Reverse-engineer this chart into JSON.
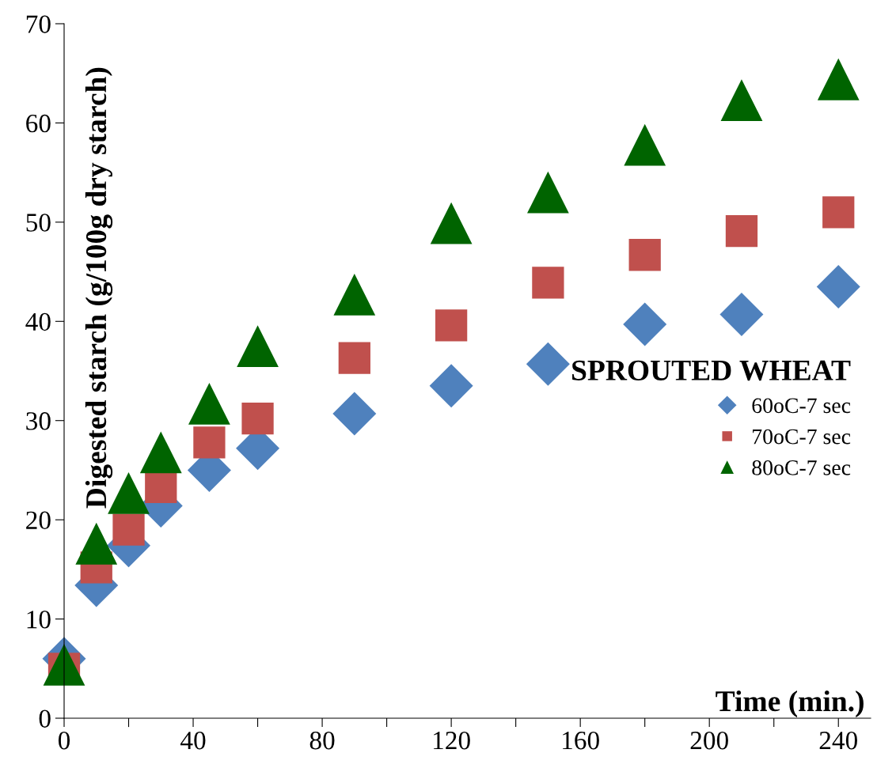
{
  "chart_data": {
    "type": "scatter",
    "xlabel": "Time (min.)",
    "ylabel": "Digested starch (g/100g dry starch)",
    "legend_title": "SPROUTED WHEAT",
    "legend": "center right",
    "x": [
      0,
      10,
      20,
      30,
      45,
      60,
      90,
      120,
      150,
      180,
      210,
      240
    ],
    "series": [
      {
        "name": "60oC-7 sec",
        "color": "#4f81bd",
        "marker": "diamond",
        "values": [
          6,
          13.4,
          17.4,
          21.4,
          25,
          27.2,
          30.7,
          33.5,
          35.7,
          39.7,
          40.7,
          43.5
        ]
      },
      {
        "name": "70oC-7 sec",
        "color": "#c0504d",
        "marker": "square",
        "values": [
          5,
          15.2,
          19,
          23.3,
          27.8,
          30.2,
          36.3,
          39.6,
          43.9,
          46.7,
          49.1,
          51
        ]
      },
      {
        "name": "80oC-7 sec",
        "color": "#006400",
        "marker": "triangle",
        "values": [
          5.4,
          17.6,
          22.7,
          26.8,
          31.7,
          37.5,
          42.7,
          49.9,
          53,
          57.8,
          62.3,
          64.4
        ]
      }
    ],
    "xlim": [
      0,
      250
    ],
    "ylim": [
      0,
      70
    ],
    "xticks": [
      0,
      {
        "value": 20,
        "label": null
      },
      40,
      {
        "value": 60,
        "label": null
      },
      80,
      {
        "value": 100,
        "label": null
      },
      120,
      {
        "value": 140,
        "label": null
      },
      160,
      {
        "value": 180,
        "label": null
      },
      200,
      {
        "value": 220,
        "label": null
      },
      240
    ],
    "yticks": [
      0,
      10,
      20,
      30,
      40,
      50,
      60,
      70
    ],
    "grid": false
  }
}
